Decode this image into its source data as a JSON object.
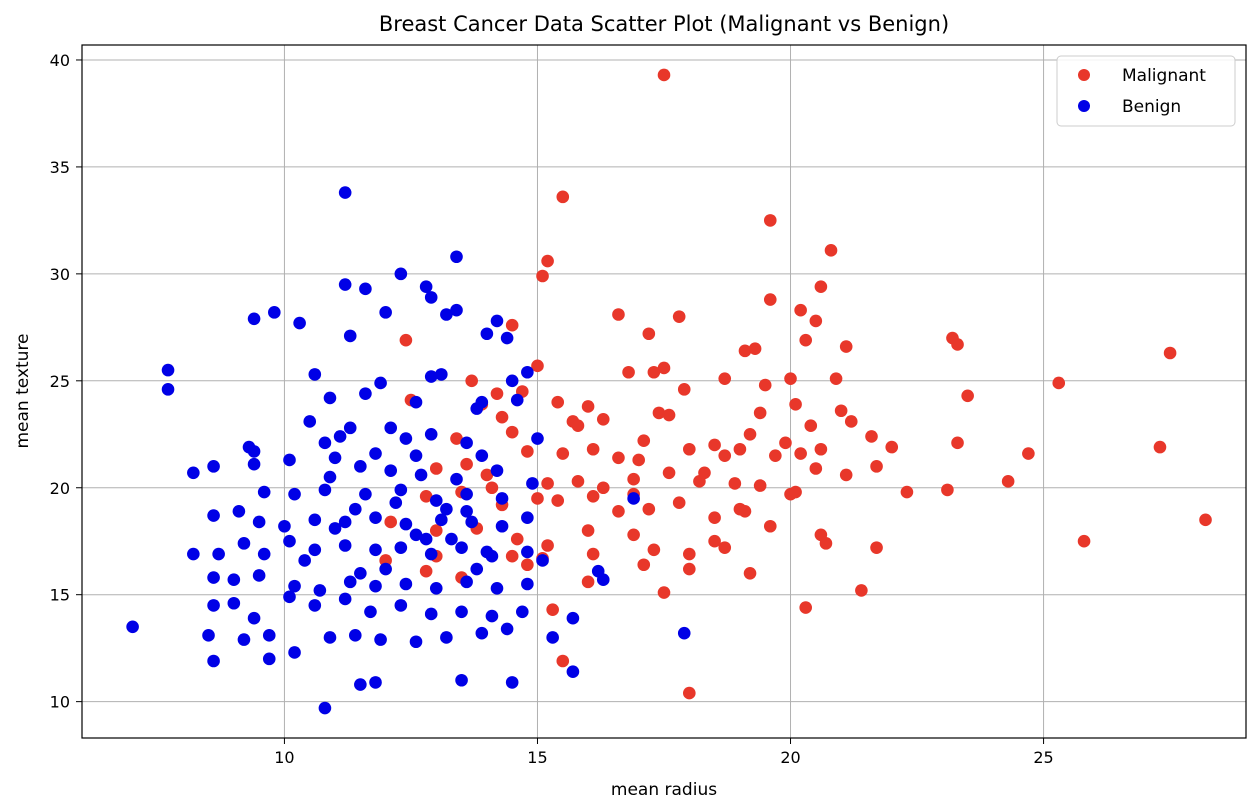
{
  "chart_data": {
    "type": "scatter",
    "title": "Breast Cancer Data Scatter Plot (Malignant vs Benign)",
    "xlabel": "mean radius",
    "ylabel": "mean texture",
    "xlim": [
      6.0,
      29.0
    ],
    "ylim": [
      8.3,
      40.7
    ],
    "xticks": [
      10,
      15,
      20,
      25
    ],
    "yticks": [
      10,
      15,
      20,
      25,
      30,
      35,
      40
    ],
    "grid": true,
    "legend_position": "top-right",
    "series": [
      {
        "name": "Malignant",
        "color": "#e8372a",
        "points": [
          [
            17.5,
            39.3
          ],
          [
            15.5,
            33.6
          ],
          [
            19.6,
            32.5
          ],
          [
            20.8,
            31.1
          ],
          [
            15.2,
            30.6
          ],
          [
            15.1,
            29.9
          ],
          [
            20.6,
            29.4
          ],
          [
            19.6,
            28.8
          ],
          [
            20.2,
            28.3
          ],
          [
            16.6,
            28.1
          ],
          [
            17.8,
            28.0
          ],
          [
            20.5,
            27.8
          ],
          [
            14.5,
            27.6
          ],
          [
            17.2,
            27.2
          ],
          [
            20.3,
            26.9
          ],
          [
            23.2,
            27.0
          ],
          [
            23.3,
            26.7
          ],
          [
            21.1,
            26.6
          ],
          [
            19.1,
            26.4
          ],
          [
            19.3,
            26.5
          ],
          [
            27.5,
            26.3
          ],
          [
            12.4,
            26.9
          ],
          [
            17.5,
            25.6
          ],
          [
            17.3,
            25.4
          ],
          [
            15.0,
            25.7
          ],
          [
            16.8,
            25.4
          ],
          [
            18.7,
            25.1
          ],
          [
            19.5,
            24.8
          ],
          [
            20.0,
            25.1
          ],
          [
            20.9,
            25.1
          ],
          [
            25.3,
            24.9
          ],
          [
            13.7,
            25.0
          ],
          [
            14.2,
            24.4
          ],
          [
            14.7,
            24.5
          ],
          [
            15.4,
            24.0
          ],
          [
            16.0,
            23.8
          ],
          [
            17.4,
            23.5
          ],
          [
            17.6,
            23.4
          ],
          [
            19.4,
            23.5
          ],
          [
            20.1,
            23.9
          ],
          [
            21.0,
            23.6
          ],
          [
            23.5,
            24.3
          ],
          [
            12.5,
            24.1
          ],
          [
            13.9,
            23.9
          ],
          [
            14.3,
            23.3
          ],
          [
            15.7,
            23.1
          ],
          [
            16.3,
            23.2
          ],
          [
            17.1,
            22.2
          ],
          [
            19.2,
            22.5
          ],
          [
            20.4,
            22.9
          ],
          [
            21.2,
            23.1
          ],
          [
            21.6,
            22.4
          ],
          [
            22.0,
            21.9
          ],
          [
            23.3,
            22.1
          ],
          [
            14.5,
            22.6
          ],
          [
            14.8,
            21.7
          ],
          [
            15.5,
            21.6
          ],
          [
            16.1,
            21.8
          ],
          [
            16.6,
            21.4
          ],
          [
            17.0,
            21.3
          ],
          [
            18.0,
            21.8
          ],
          [
            18.5,
            22.0
          ],
          [
            19.0,
            21.8
          ],
          [
            19.7,
            21.5
          ],
          [
            20.2,
            21.6
          ],
          [
            20.6,
            21.8
          ],
          [
            24.7,
            21.6
          ],
          [
            27.3,
            21.9
          ],
          [
            13.0,
            20.9
          ],
          [
            13.6,
            21.1
          ],
          [
            14.0,
            20.6
          ],
          [
            15.2,
            20.2
          ],
          [
            15.8,
            20.3
          ],
          [
            16.3,
            20.0
          ],
          [
            16.9,
            20.4
          ],
          [
            17.6,
            20.7
          ],
          [
            18.2,
            20.3
          ],
          [
            18.9,
            20.2
          ],
          [
            19.4,
            20.1
          ],
          [
            20.0,
            19.7
          ],
          [
            20.5,
            20.9
          ],
          [
            21.7,
            21.0
          ],
          [
            24.3,
            20.3
          ],
          [
            12.8,
            19.6
          ],
          [
            13.5,
            19.8
          ],
          [
            14.3,
            19.2
          ],
          [
            15.0,
            19.5
          ],
          [
            15.4,
            19.4
          ],
          [
            16.1,
            19.6
          ],
          [
            16.6,
            18.9
          ],
          [
            17.2,
            19.0
          ],
          [
            17.8,
            19.3
          ],
          [
            18.5,
            18.6
          ],
          [
            19.1,
            18.9
          ],
          [
            19.6,
            18.2
          ],
          [
            20.1,
            19.8
          ],
          [
            22.3,
            19.8
          ],
          [
            23.1,
            19.9
          ],
          [
            28.2,
            18.5
          ],
          [
            12.1,
            18.4
          ],
          [
            13.0,
            18.0
          ],
          [
            13.8,
            18.1
          ],
          [
            14.6,
            17.6
          ],
          [
            15.2,
            17.3
          ],
          [
            16.0,
            18.0
          ],
          [
            16.9,
            17.8
          ],
          [
            18.5,
            17.5
          ],
          [
            18.7,
            17.2
          ],
          [
            20.6,
            17.8
          ],
          [
            20.7,
            17.4
          ],
          [
            21.7,
            17.2
          ],
          [
            25.8,
            17.5
          ],
          [
            12.0,
            16.6
          ],
          [
            12.8,
            16.1
          ],
          [
            13.5,
            15.8
          ],
          [
            14.5,
            16.8
          ],
          [
            15.1,
            16.7
          ],
          [
            15.3,
            14.3
          ],
          [
            16.0,
            15.6
          ],
          [
            17.3,
            17.1
          ],
          [
            18.0,
            16.9
          ],
          [
            18.0,
            16.2
          ],
          [
            19.2,
            16.0
          ],
          [
            20.3,
            14.4
          ],
          [
            21.4,
            15.2
          ],
          [
            17.5,
            15.1
          ],
          [
            15.5,
            11.9
          ],
          [
            18.0,
            10.4
          ],
          [
            16.1,
            16.9
          ],
          [
            14.8,
            16.4
          ],
          [
            17.1,
            16.4
          ],
          [
            13.0,
            16.8
          ],
          [
            19.0,
            19.0
          ],
          [
            21.1,
            20.6
          ],
          [
            16.9,
            19.7
          ],
          [
            18.3,
            20.7
          ],
          [
            14.1,
            20.0
          ],
          [
            13.4,
            22.3
          ],
          [
            15.8,
            22.9
          ],
          [
            18.7,
            21.5
          ],
          [
            17.9,
            24.6
          ],
          [
            19.9,
            22.1
          ]
        ]
      },
      {
        "name": "Benign",
        "color": "#0000e6",
        "points": [
          [
            11.2,
            33.8
          ],
          [
            13.4,
            30.8
          ],
          [
            12.3,
            30.0
          ],
          [
            12.8,
            29.4
          ],
          [
            11.2,
            29.5
          ],
          [
            11.6,
            29.3
          ],
          [
            12.9,
            28.9
          ],
          [
            9.8,
            28.2
          ],
          [
            9.4,
            27.9
          ],
          [
            12.0,
            28.2
          ],
          [
            13.2,
            28.1
          ],
          [
            13.4,
            28.3
          ],
          [
            14.2,
            27.8
          ],
          [
            10.3,
            27.7
          ],
          [
            11.3,
            27.1
          ],
          [
            14.0,
            27.2
          ],
          [
            14.4,
            27.0
          ],
          [
            7.7,
            25.5
          ],
          [
            7.7,
            24.6
          ],
          [
            10.6,
            25.3
          ],
          [
            12.9,
            25.2
          ],
          [
            13.1,
            25.3
          ],
          [
            14.5,
            25.0
          ],
          [
            14.8,
            25.4
          ],
          [
            11.6,
            24.4
          ],
          [
            11.9,
            24.9
          ],
          [
            12.6,
            24.0
          ],
          [
            13.8,
            23.7
          ],
          [
            10.9,
            24.2
          ],
          [
            13.9,
            24.0
          ],
          [
            14.6,
            24.1
          ],
          [
            10.5,
            23.1
          ],
          [
            11.3,
            22.8
          ],
          [
            12.1,
            22.8
          ],
          [
            12.4,
            22.3
          ],
          [
            13.6,
            22.1
          ],
          [
            9.3,
            21.9
          ],
          [
            9.4,
            21.7
          ],
          [
            10.8,
            22.1
          ],
          [
            11.1,
            22.4
          ],
          [
            12.6,
            21.5
          ],
          [
            13.9,
            21.5
          ],
          [
            8.6,
            21.0
          ],
          [
            9.4,
            21.1
          ],
          [
            10.1,
            21.3
          ],
          [
            11.0,
            21.4
          ],
          [
            11.5,
            21.0
          ],
          [
            12.1,
            20.8
          ],
          [
            12.7,
            20.6
          ],
          [
            13.4,
            20.4
          ],
          [
            14.2,
            20.8
          ],
          [
            14.9,
            20.2
          ],
          [
            8.2,
            20.7
          ],
          [
            9.6,
            19.8
          ],
          [
            10.2,
            19.7
          ],
          [
            10.8,
            19.9
          ],
          [
            11.6,
            19.7
          ],
          [
            12.3,
            19.9
          ],
          [
            13.0,
            19.4
          ],
          [
            13.6,
            19.7
          ],
          [
            14.3,
            19.5
          ],
          [
            8.6,
            18.7
          ],
          [
            9.1,
            18.9
          ],
          [
            9.5,
            18.4
          ],
          [
            10.0,
            18.2
          ],
          [
            10.6,
            18.5
          ],
          [
            11.2,
            18.4
          ],
          [
            11.8,
            18.6
          ],
          [
            12.4,
            18.3
          ],
          [
            13.1,
            18.5
          ],
          [
            13.7,
            18.4
          ],
          [
            14.3,
            18.2
          ],
          [
            8.2,
            16.9
          ],
          [
            8.7,
            16.9
          ],
          [
            9.2,
            17.4
          ],
          [
            9.6,
            16.9
          ],
          [
            10.1,
            17.5
          ],
          [
            10.6,
            17.1
          ],
          [
            11.2,
            17.3
          ],
          [
            11.8,
            17.1
          ],
          [
            12.3,
            17.2
          ],
          [
            12.9,
            16.9
          ],
          [
            13.5,
            17.2
          ],
          [
            14.1,
            16.8
          ],
          [
            14.8,
            17.0
          ],
          [
            8.6,
            15.8
          ],
          [
            9.0,
            15.7
          ],
          [
            9.5,
            15.9
          ],
          [
            10.2,
            15.4
          ],
          [
            10.7,
            15.2
          ],
          [
            11.3,
            15.6
          ],
          [
            11.8,
            15.4
          ],
          [
            12.4,
            15.5
          ],
          [
            13.0,
            15.3
          ],
          [
            13.6,
            15.6
          ],
          [
            14.2,
            15.3
          ],
          [
            14.8,
            15.5
          ],
          [
            8.6,
            14.5
          ],
          [
            9.0,
            14.6
          ],
          [
            9.4,
            13.9
          ],
          [
            10.1,
            14.9
          ],
          [
            10.6,
            14.5
          ],
          [
            11.2,
            14.8
          ],
          [
            11.7,
            14.2
          ],
          [
            12.3,
            14.5
          ],
          [
            12.9,
            14.1
          ],
          [
            13.5,
            14.2
          ],
          [
            14.1,
            14.0
          ],
          [
            14.7,
            14.2
          ],
          [
            7.0,
            13.5
          ],
          [
            8.5,
            13.1
          ],
          [
            9.2,
            12.9
          ],
          [
            9.7,
            13.1
          ],
          [
            10.2,
            12.3
          ],
          [
            10.9,
            13.0
          ],
          [
            11.4,
            13.1
          ],
          [
            11.9,
            12.9
          ],
          [
            12.6,
            12.8
          ],
          [
            13.2,
            13.0
          ],
          [
            13.9,
            13.2
          ],
          [
            14.4,
            13.4
          ],
          [
            8.6,
            11.9
          ],
          [
            9.7,
            12.0
          ],
          [
            11.5,
            10.8
          ],
          [
            11.8,
            10.9
          ],
          [
            13.5,
            11.0
          ],
          [
            14.5,
            10.9
          ],
          [
            10.8,
            9.7
          ],
          [
            15.3,
            13.0
          ],
          [
            15.7,
            13.9
          ],
          [
            15.7,
            11.4
          ],
          [
            16.2,
            16.1
          ],
          [
            16.3,
            15.7
          ],
          [
            16.9,
            19.5
          ],
          [
            17.9,
            13.2
          ],
          [
            15.1,
            16.6
          ],
          [
            14.8,
            18.6
          ],
          [
            15.0,
            22.3
          ],
          [
            13.3,
            17.6
          ],
          [
            12.0,
            16.2
          ],
          [
            10.4,
            16.6
          ],
          [
            11.0,
            18.1
          ],
          [
            12.6,
            17.8
          ],
          [
            13.8,
            16.2
          ],
          [
            11.5,
            16.0
          ],
          [
            12.2,
            19.3
          ],
          [
            13.2,
            19.0
          ],
          [
            10.9,
            20.5
          ],
          [
            11.8,
            21.6
          ],
          [
            12.9,
            22.5
          ],
          [
            11.4,
            19.0
          ],
          [
            12.8,
            17.6
          ],
          [
            13.6,
            18.9
          ],
          [
            14.0,
            17.0
          ]
        ]
      }
    ]
  }
}
